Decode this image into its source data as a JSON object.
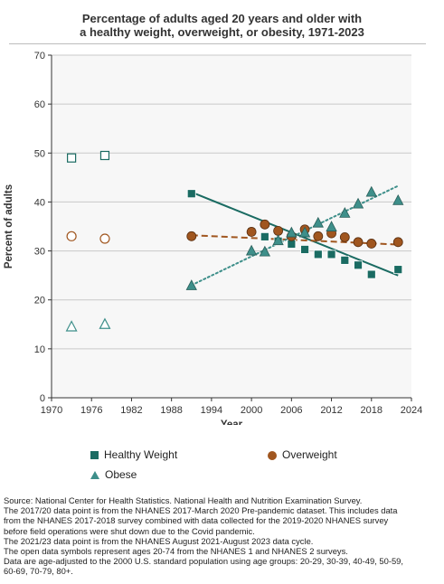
{
  "title_line1": "Percentage of adults aged 20 years and older with",
  "title_line2": "a healthy weight, overweight, or obesity, 1971-2023",
  "chart_data": {
    "type": "scatter",
    "xlabel": "Year",
    "ylabel": "Percent of adults",
    "xlim": [
      1970,
      2024
    ],
    "ylim": [
      0,
      70
    ],
    "x_ticks": [
      1970,
      1976,
      1982,
      1988,
      1994,
      2000,
      2006,
      2012,
      2018,
      2024
    ],
    "y_ticks": [
      0,
      10,
      20,
      30,
      40,
      50,
      60,
      70
    ],
    "grid": "horizontal",
    "series": [
      {
        "name": "Healthy Weight",
        "color": "#1a6b62",
        "marker": "square",
        "open_points": [
          {
            "x": 1973,
            "y": 49.0
          },
          {
            "x": 1978,
            "y": 49.5
          }
        ],
        "points": [
          {
            "x": 1991,
            "y": 41.7
          },
          {
            "x": 2000,
            "y": 33.9
          },
          {
            "x": 2002,
            "y": 32.9
          },
          {
            "x": 2004,
            "y": 32.0
          },
          {
            "x": 2006,
            "y": 31.4
          },
          {
            "x": 2008,
            "y": 30.3
          },
          {
            "x": 2010,
            "y": 29.3
          },
          {
            "x": 2012,
            "y": 29.3
          },
          {
            "x": 2014,
            "y": 28.1
          },
          {
            "x": 2016,
            "y": 27.1
          },
          {
            "x": 2018,
            "y": 25.2
          },
          {
            "x": 2022,
            "y": 26.2
          }
        ],
        "trend": [
          [
            1991,
            42.0
          ],
          [
            2022,
            25.0
          ]
        ],
        "trend_style": "solid"
      },
      {
        "name": "Overweight",
        "color": "#a0561f",
        "marker": "circle",
        "open_points": [
          {
            "x": 1973,
            "y": 33.0
          },
          {
            "x": 1978,
            "y": 32.5
          }
        ],
        "points": [
          {
            "x": 1991,
            "y": 33.0
          },
          {
            "x": 2000,
            "y": 33.9
          },
          {
            "x": 2002,
            "y": 35.4
          },
          {
            "x": 2004,
            "y": 34.1
          },
          {
            "x": 2006,
            "y": 33.0
          },
          {
            "x": 2008,
            "y": 34.4
          },
          {
            "x": 2010,
            "y": 33.0
          },
          {
            "x": 2012,
            "y": 33.6
          },
          {
            "x": 2014,
            "y": 32.8
          },
          {
            "x": 2016,
            "y": 31.8
          },
          {
            "x": 2018,
            "y": 31.5
          },
          {
            "x": 2022,
            "y": 31.8
          }
        ],
        "trend": [
          [
            1991,
            33.2
          ],
          [
            2022,
            31.3
          ]
        ],
        "trend_style": "dashed"
      },
      {
        "name": "Obese",
        "color": "#3e8f8a",
        "marker": "triangle",
        "open_points": [
          {
            "x": 1973,
            "y": 14.5
          },
          {
            "x": 1978,
            "y": 15.0
          }
        ],
        "points": [
          {
            "x": 1991,
            "y": 22.9
          },
          {
            "x": 2000,
            "y": 30.0
          },
          {
            "x": 2002,
            "y": 29.8
          },
          {
            "x": 2004,
            "y": 32.1
          },
          {
            "x": 2006,
            "y": 33.7
          },
          {
            "x": 2008,
            "y": 33.7
          },
          {
            "x": 2010,
            "y": 35.7
          },
          {
            "x": 2012,
            "y": 34.9
          },
          {
            "x": 2014,
            "y": 37.7
          },
          {
            "x": 2016,
            "y": 39.6
          },
          {
            "x": 2018,
            "y": 42.0
          },
          {
            "x": 2022,
            "y": 40.3
          }
        ],
        "trend": [
          [
            1991,
            23.0
          ],
          [
            2022,
            43.3
          ]
        ],
        "trend_style": "dotted"
      }
    ],
    "legend": [
      "Healthy Weight",
      "Overweight",
      "Obese"
    ],
    "legend_position": "bottom"
  },
  "footnotes": [
    "Source: National Center for Health Statistics. National Health and Nutrition Examination Survey.",
    "The 2017/20 data point is from the NHANES 2017-March 2020 Pre-pandemic dataset. This includes data",
    "from the NHANES 2017-2018 survey combined with data collected for the 2019-2020 NHANES survey",
    "before field operations were shut down due to the Covid pandemic.",
    "The 2021/23 data point is from the NHANES August 2021-August 2023 data cycle.",
    "The open data symbols represent ages 20-74 from the NHANES 1 and NHANES 2 surveys.",
    "Data are age-adjusted to the 2000 U.S. standard population using age groups: 20-29, 30-39, 40-49, 50-59,",
    "60-69, 70-79, 80+."
  ]
}
